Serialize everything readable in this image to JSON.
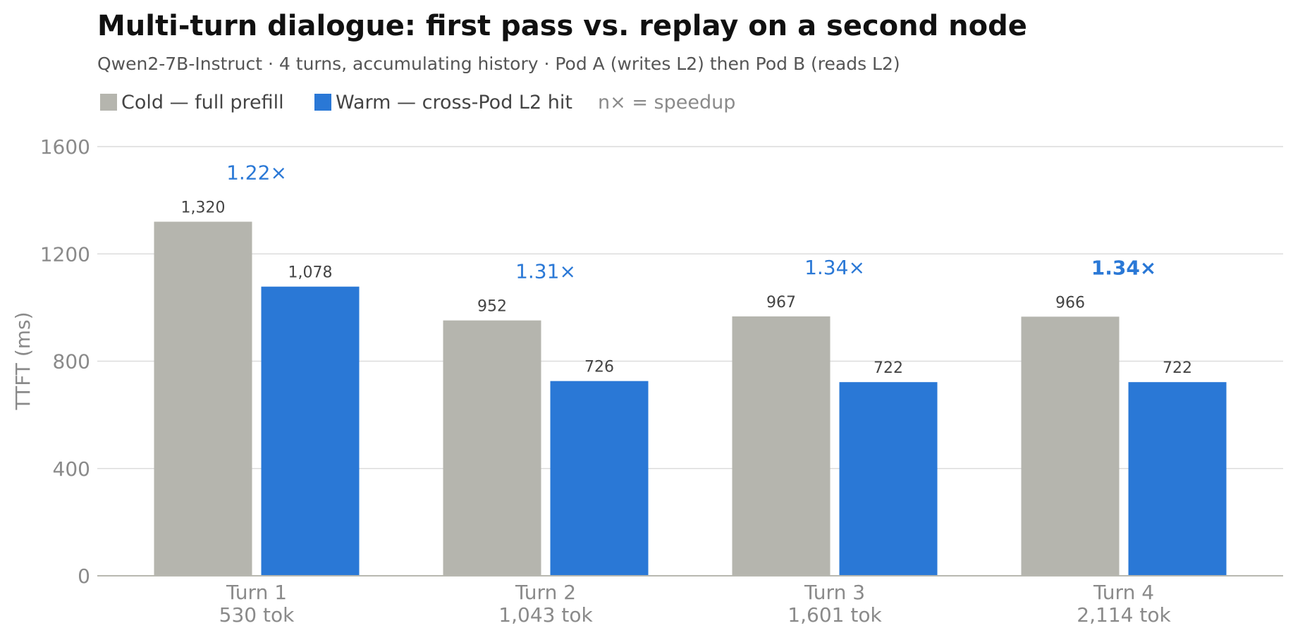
{
  "title": "Multi-turn dialogue: first pass vs. replay on a second node",
  "subtitle": "Qwen2-7B-Instruct · 4 turns, accumulating history · Pod A (writes L2) then Pod B (reads L2)",
  "legend": {
    "cold_label": "Cold — full prefill",
    "warm_label": "Warm — cross-Pod L2 hit",
    "note": "n× = speedup"
  },
  "colors": {
    "cold": "#b5b5ae",
    "warm": "#2a78d6",
    "speedup": "#2a78d6"
  },
  "chart_data": {
    "type": "bar",
    "title": "Multi-turn dialogue: first pass vs. replay on a second node",
    "ylabel": "TTFT (ms)",
    "ylim": [
      0,
      1600
    ],
    "yticks": [
      0,
      400,
      800,
      1200,
      1600
    ],
    "grid": true,
    "legend_position": "top-left",
    "categories": [
      "Turn 1",
      "Turn 2",
      "Turn 3",
      "Turn 4"
    ],
    "category_sublabels": [
      "530 tok",
      "1,043 tok",
      "1,601 tok",
      "2,114 tok"
    ],
    "series": [
      {
        "name": "Cold — full prefill",
        "values": [
          1320,
          952,
          967,
          966
        ],
        "labels": [
          "1,320",
          "952",
          "967",
          "966"
        ]
      },
      {
        "name": "Warm — cross-Pod L2 hit",
        "values": [
          1078,
          726,
          722,
          722
        ],
        "labels": [
          "1,078",
          "726",
          "722",
          "722"
        ]
      }
    ],
    "speedups": [
      "1.22×",
      "1.31×",
      "1.34×",
      "1.34×"
    ]
  }
}
